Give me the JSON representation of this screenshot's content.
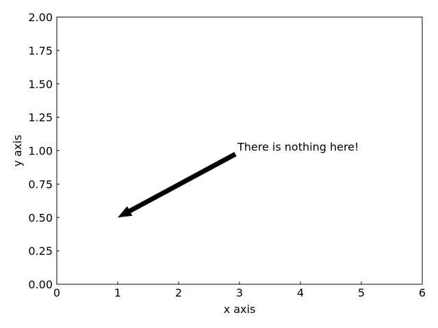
{
  "chart_data": {
    "type": "scatter",
    "title": "",
    "xlabel": "x axis",
    "ylabel": "y axis",
    "xlim": [
      0,
      6
    ],
    "ylim": [
      0,
      2
    ],
    "grid": false,
    "x_ticks": [
      0,
      1,
      2,
      3,
      4,
      5,
      6
    ],
    "y_ticks": [
      0,
      0.25,
      0.5,
      0.75,
      1.0,
      1.25,
      1.5,
      1.75,
      2.0
    ],
    "x_tick_labels": [
      "0",
      "1",
      "2",
      "3",
      "4",
      "5",
      "6"
    ],
    "y_tick_labels": [
      "0.00",
      "0.25",
      "0.50",
      "0.75",
      "1.00",
      "1.25",
      "1.50",
      "1.75",
      "2.00"
    ],
    "series": [],
    "annotations": [
      {
        "text": "There is nothing here!",
        "xy": [
          1,
          0.5
        ],
        "xytext": [
          3,
          1
        ],
        "arrow_color": "#000000"
      }
    ]
  }
}
